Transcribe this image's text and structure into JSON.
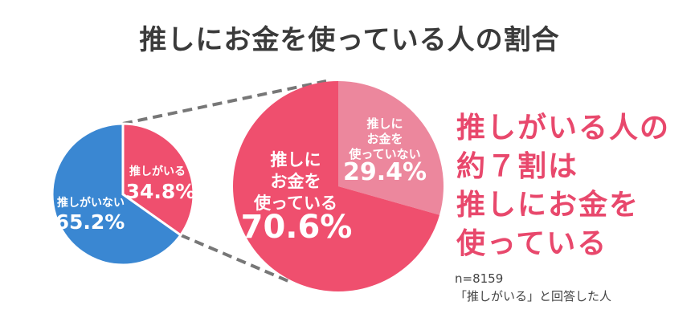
{
  "title": "推しにお金を使っている人の割合",
  "colors": {
    "blue": "#3a87d2",
    "red": "#ef4f6e",
    "pink": "#ec879d",
    "headline": "#e8486c"
  },
  "chart_data": [
    {
      "type": "pie",
      "slices": [
        {
          "label": "推しがいる",
          "value": 34.8,
          "text": "34.8%",
          "color": "#ef4f6e"
        },
        {
          "label": "推しがいない",
          "value": 65.2,
          "text": "65.2%",
          "color": "#3a87d2"
        }
      ]
    },
    {
      "type": "pie",
      "slices": [
        {
          "label": "推しにお金を使っていない",
          "label_lines": [
            "推しに",
            "お金を",
            "使っていない"
          ],
          "value": 29.4,
          "text": "29.4%",
          "color": "#ec879d"
        },
        {
          "label": "推しにお金を使っている",
          "label_lines": [
            "推しに",
            "お金を",
            "使っている"
          ],
          "value": 70.6,
          "text": "70.6%",
          "color": "#ef4f6e"
        }
      ]
    }
  ],
  "headline": [
    "推しがいる人の",
    "約７割は",
    "推しにお金を",
    "使っている"
  ],
  "note": [
    "n=8159",
    "「推しがいる」と回答した人"
  ]
}
